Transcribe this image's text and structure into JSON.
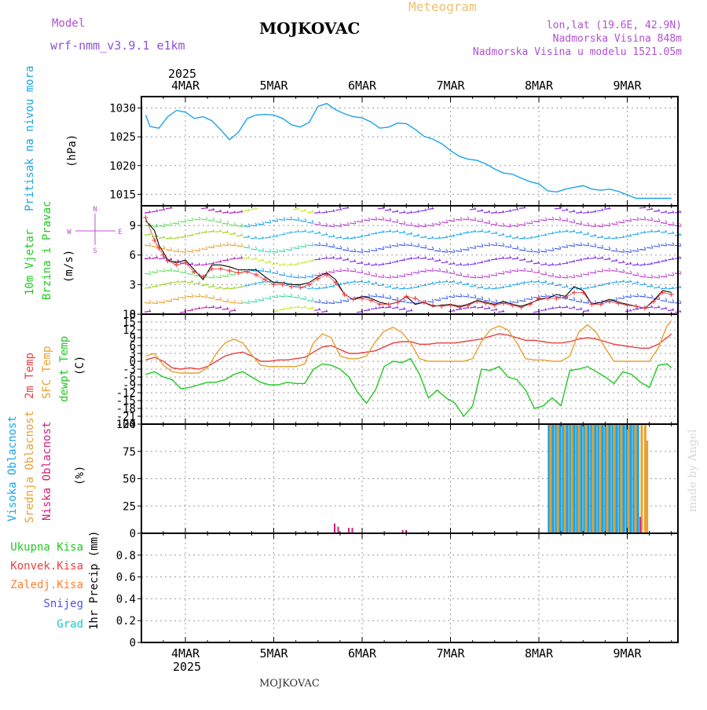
{
  "header": {
    "model_label": "Model",
    "model_name": "wrf-nmm_v3.9.1 e1km",
    "station": "MOJKOVAC",
    "chart_kind": "Meteogram",
    "lonlat": "lon,lat (19.6E, 42.9N)",
    "elevation": "Nadmorska Visina 848m",
    "model_elevation": "Nadmorska Visina u modelu 1521.05m",
    "footer_station": "MOJKOVAC",
    "credit": "made by Angel"
  },
  "time_axis": {
    "year": "2025",
    "days": [
      "4MAR",
      "5MAR",
      "6MAR",
      "7MAR",
      "8MAR",
      "9MAR"
    ]
  },
  "colors": {
    "pressure": "#1aa3e8",
    "temp2m": "#e84040",
    "sfc": "#e8a030",
    "dewpt": "#22c822",
    "high_cloud": "#1aa3e8",
    "mid_cloud": "#e8a030",
    "low_cloud": "#d0207a",
    "total_precip": "#22c822",
    "conv_precip": "#e84040",
    "frozen_precip": "#ff8030",
    "snow": "#5050e8",
    "hail": "#20c8c8",
    "wind_label": "#22c822",
    "wind_compass": "#c050d0"
  },
  "panels": {
    "pressure": {
      "labels": [
        "Pritisak na nivou mora"
      ],
      "unit": "(hPa)",
      "ticks": [
        "1015",
        "1020",
        "1025",
        "1030"
      ]
    },
    "wind": {
      "labels": [
        "10m Vjetar",
        "Brzina i Pravac"
      ],
      "unit": "(m/s)",
      "ticks": [
        "0",
        "3",
        "6",
        "9"
      ],
      "compass": {
        "n": "N",
        "s": "S",
        "e": "E",
        "w": "W"
      }
    },
    "temp": {
      "labels": [
        "2m Temp",
        "SFC Temp",
        "dewpt Temp"
      ],
      "unit": "(C)",
      "ticks": [
        "-24",
        "-21",
        "-18",
        "-15",
        "-12",
        "-9",
        "-6",
        "-3",
        "0",
        "3",
        "6",
        "9",
        "12",
        "15",
        "18"
      ]
    },
    "cloud": {
      "labels": [
        "Visoka Oblacnost",
        "Srednja Oblacnost",
        "Niska Oblacnost"
      ],
      "unit": "(%)",
      "ticks": [
        "0",
        "25",
        "50",
        "75",
        "100"
      ]
    },
    "precip": {
      "legend": [
        "Ukupna Kisa",
        "Konvek.Kisa",
        "Zaledj.Kisa",
        "Snijeg",
        "Grad"
      ],
      "unit": "1hr Precip (mm)",
      "ticks": [
        "0",
        "0.2",
        "0.4",
        "0.6",
        "0.8"
      ]
    }
  },
  "chart_data": [
    {
      "type": "line",
      "title": "Pritisak na nivou mora",
      "ylabel": "(hPa)",
      "ylim": [
        1013,
        1032
      ],
      "x_unit": "days from 4MAR 00UTC",
      "x": [
        -0.45,
        -0.4,
        -0.3,
        -0.2,
        -0.1,
        0,
        0.1,
        0.2,
        0.3,
        0.4,
        0.5,
        0.6,
        0.7,
        0.8,
        0.9,
        1,
        1.1,
        1.2,
        1.3,
        1.4,
        1.5,
        1.6,
        1.7,
        1.8,
        1.9,
        2,
        2.1,
        2.2,
        2.3,
        2.4,
        2.5,
        2.6,
        2.7,
        2.8,
        2.9,
        3,
        3.1,
        3.2,
        3.3,
        3.4,
        3.5,
        3.6,
        3.7,
        3.8,
        3.9,
        4,
        4.1,
        4.2,
        4.3,
        4.4,
        4.5,
        4.6,
        4.7,
        4.8,
        4.9,
        5,
        5.1,
        5.2,
        5.3,
        5.4,
        5.5
      ],
      "series": [
        {
          "name": "",
          "values": [
            1028.8,
            1026.8,
            1026.5,
            1028.5,
            1029.6,
            1029.3,
            1028.2,
            1028.5,
            1027.8,
            1026.2,
            1024.5,
            1025.8,
            1028.2,
            1028.8,
            1028.9,
            1028.8,
            1028.2,
            1027.1,
            1026.7,
            1027.5,
            1030.3,
            1030.8,
            1029.7,
            1029.0,
            1028.5,
            1028.3,
            1027.6,
            1026.5,
            1026.7,
            1027.4,
            1027.3,
            1026.3,
            1025.1,
            1024.6,
            1023.8,
            1022.6,
            1021.6,
            1021.1,
            1020.9,
            1020.3,
            1019.4,
            1018.7,
            1018.5,
            1017.8,
            1017.2,
            1016.8,
            1015.6,
            1015.4,
            1015.9,
            1016.2,
            1016.5,
            1015.9,
            1015.7,
            1015.9,
            1015.5,
            1014.9,
            1014.3,
            1014.3,
            1014.3,
            1014.3,
            1014.3
          ]
        }
      ]
    },
    {
      "type": "line",
      "title": "10m Vjetar Brzina i Pravac",
      "ylabel": "(m/s)",
      "ylim": [
        0,
        11
      ],
      "x_unit": "days from 4MAR 00UTC",
      "x": [
        -0.45,
        -0.35,
        -0.3,
        -0.25,
        -0.2,
        -0.1,
        0,
        0.1,
        0.2,
        0.3,
        0.4,
        0.5,
        0.6,
        0.7,
        0.8,
        0.9,
        1,
        1.1,
        1.2,
        1.3,
        1.4,
        1.5,
        1.6,
        1.7,
        1.8,
        1.9,
        2,
        2.1,
        2.2,
        2.3,
        2.4,
        2.5,
        2.6,
        2.7,
        2.8,
        2.9,
        3,
        3.1,
        3.2,
        3.3,
        3.4,
        3.5,
        3.6,
        3.7,
        3.8,
        3.9,
        4,
        4.1,
        4.2,
        4.3,
        4.4,
        4.5,
        4.6,
        4.7,
        4.8,
        4.9,
        5,
        5.1,
        5.2,
        5.3,
        5.4,
        5.5
      ],
      "series": [
        {
          "name": "",
          "values": [
            9.5,
            8.5,
            7.0,
            6.3,
            5.5,
            5.2,
            5.5,
            4.5,
            3.5,
            5.0,
            5.0,
            4.8,
            4.5,
            4.5,
            4.5,
            3.8,
            3.2,
            3.2,
            3.0,
            3.0,
            3.2,
            3.8,
            4.2,
            3.5,
            2.0,
            1.5,
            1.8,
            1.6,
            1.2,
            1.0,
            1.2,
            1.8,
            1.0,
            1.2,
            0.8,
            0.9,
            1.0,
            0.8,
            1.0,
            1.4,
            1.2,
            1.0,
            1.3,
            1.0,
            0.8,
            1.1,
            1.5,
            1.6,
            2.0,
            1.8,
            2.8,
            2.4,
            1.0,
            1.2,
            1.5,
            1.2,
            1.0,
            0.8,
            0.6,
            1.4,
            2.4,
            2.2
          ]
        },
        {
          "name": "",
          "values": [
            9.8,
            7.5,
            6.7,
            6.0,
            5.4,
            5.0,
            5.2,
            4.3,
            3.8,
            4.6,
            4.6,
            4.4,
            4.2,
            4.3,
            4.0,
            3.5,
            3.0,
            3.0,
            2.8,
            2.7,
            3.0,
            3.6,
            4.0,
            3.2,
            2.0,
            1.5,
            1.6,
            1.4,
            1.0,
            1.0,
            1.2,
            1.8,
            1.6,
            1.2,
            0.9,
            0.8,
            0.9,
            0.7,
            0.9,
            1.3,
            1.1,
            0.9,
            1.1,
            0.9,
            0.7,
            1.0,
            1.6,
            1.6,
            1.6,
            1.7,
            2.2,
            2.2,
            1.0,
            1.0,
            1.3,
            1.1,
            0.9,
            0.8,
            0.6,
            1.3,
            2.2,
            2.0
          ]
        }
      ]
    },
    {
      "type": "line",
      "title": "2m Temp / SFC Temp / dewpt Temp",
      "ylabel": "(C)",
      "ylim": [
        -24,
        18
      ],
      "x_unit": "days from 4MAR 00UTC",
      "x": [
        -0.45,
        -0.35,
        -0.25,
        -0.15,
        -0.05,
        0.05,
        0.15,
        0.25,
        0.35,
        0.45,
        0.55,
        0.65,
        0.75,
        0.85,
        0.95,
        1.05,
        1.15,
        1.25,
        1.35,
        1.45,
        1.55,
        1.65,
        1.75,
        1.85,
        1.95,
        2.05,
        2.15,
        2.25,
        2.35,
        2.45,
        2.55,
        2.65,
        2.75,
        2.85,
        2.95,
        3.05,
        3.15,
        3.25,
        3.35,
        3.45,
        3.55,
        3.65,
        3.75,
        3.85,
        3.95,
        4.05,
        4.15,
        4.25,
        4.35,
        4.45,
        4.55,
        4.65,
        4.75,
        4.85,
        4.95,
        5.05,
        5.15,
        5.25,
        5.35,
        5.45,
        5.5
      ],
      "series": [
        {
          "name": "",
          "values": [
            0.5,
            1.5,
            0,
            -2.5,
            -3,
            -2.5,
            -3,
            -2,
            0,
            2,
            3,
            3.5,
            2,
            0,
            0,
            0.5,
            0.5,
            1,
            1.5,
            3.5,
            5.5,
            6,
            4.5,
            3,
            3,
            3.5,
            4,
            5.5,
            7,
            7.5,
            7.5,
            6.5,
            6.5,
            7,
            7,
            7,
            7.5,
            8,
            8.5,
            9.5,
            10.5,
            10,
            9,
            8,
            8,
            7.5,
            7,
            7,
            7.5,
            8.5,
            9,
            8.5,
            7.5,
            6.5,
            6,
            5.5,
            5,
            5,
            6.5,
            9,
            10.5
          ]
        },
        {
          "name": "",
          "values": [
            2,
            3,
            -1.5,
            -4,
            -4.5,
            -4.5,
            -4.5,
            -2.5,
            3,
            7,
            8.5,
            7,
            2.5,
            -1.5,
            -2,
            -2,
            -2,
            -2,
            -1,
            7,
            10.5,
            9,
            2,
            1,
            1,
            2,
            7.5,
            11.5,
            13,
            11,
            7,
            1,
            0,
            0,
            0,
            0,
            0,
            1,
            7.5,
            12,
            13.5,
            12,
            7,
            1,
            0.5,
            0.5,
            0,
            0,
            2,
            11,
            14,
            11,
            5,
            0,
            0,
            0,
            0,
            0,
            5,
            13.5,
            15.5
          ]
        },
        {
          "name": "",
          "values": [
            -5,
            -4,
            -6,
            -7,
            -10.5,
            -10,
            -9,
            -8,
            -8,
            -7,
            -5,
            -4,
            -6,
            -8,
            -9,
            -9,
            -8,
            -8.5,
            -8.5,
            -3,
            -1,
            -1.5,
            -3,
            -6,
            -12,
            -16,
            -11,
            -2,
            0,
            -0.5,
            1,
            -5,
            -14,
            -11,
            -14,
            -16,
            -21,
            -17,
            -3,
            -3.5,
            -2,
            -6,
            -7,
            -11,
            -18,
            -17,
            -14,
            -17,
            -3.5,
            -3,
            -2,
            -4,
            -6,
            -8.5,
            -4,
            -5,
            -8,
            -10,
            -1.5,
            -1,
            -2.5
          ]
        }
      ]
    },
    {
      "type": "bar",
      "title": "Visoka / Srednja / Niska Oblacnost",
      "ylabel": "(%)",
      "ylim": [
        0,
        100
      ],
      "series": [
        {
          "name": "",
          "x": [
            4.1,
            4.14,
            4.18,
            4.22,
            4.26,
            4.3,
            4.34,
            4.38,
            4.42,
            4.46,
            4.5,
            4.54,
            4.58,
            4.62,
            4.66,
            4.7,
            4.74,
            4.78,
            4.82,
            4.86,
            4.9,
            4.94,
            4.98,
            5.02,
            5.06,
            5.1
          ],
          "values": [
            100,
            100,
            100,
            100,
            100,
            100,
            100,
            100,
            100,
            100,
            100,
            100,
            100,
            100,
            100,
            100,
            100,
            100,
            100,
            100,
            100,
            100,
            100,
            100,
            100,
            100
          ]
        },
        {
          "name": "",
          "x": [
            4.12,
            4.2,
            4.28,
            4.36,
            4.44,
            4.52,
            4.6,
            4.68,
            4.76,
            4.84,
            4.92,
            5.0,
            5.08,
            5.15,
            5.19,
            5.21
          ],
          "values": [
            100,
            100,
            100,
            100,
            100,
            100,
            100,
            100,
            100,
            100,
            100,
            100,
            100,
            100,
            100,
            85
          ]
        },
        {
          "name": "",
          "x": [
            1.35,
            1.68,
            1.72,
            1.84,
            1.88,
            2.45,
            2.49,
            2.68,
            5.14
          ],
          "values": [
            2,
            9,
            6,
            5,
            5,
            3,
            3,
            1,
            15
          ]
        }
      ]
    },
    {
      "type": "bar",
      "title": "1hr Precip (mm)",
      "ylabel": "1hr Precip (mm)",
      "ylim": [
        0,
        1
      ],
      "series": [
        {
          "name": "Ukupna Kisa",
          "x": [],
          "values": []
        },
        {
          "name": "Konvek.Kisa",
          "x": [],
          "values": []
        },
        {
          "name": "Zaledj.Kisa",
          "x": [],
          "values": []
        },
        {
          "name": "Snijeg",
          "x": [],
          "values": []
        },
        {
          "name": "Grad",
          "x": [],
          "values": []
        }
      ]
    }
  ]
}
